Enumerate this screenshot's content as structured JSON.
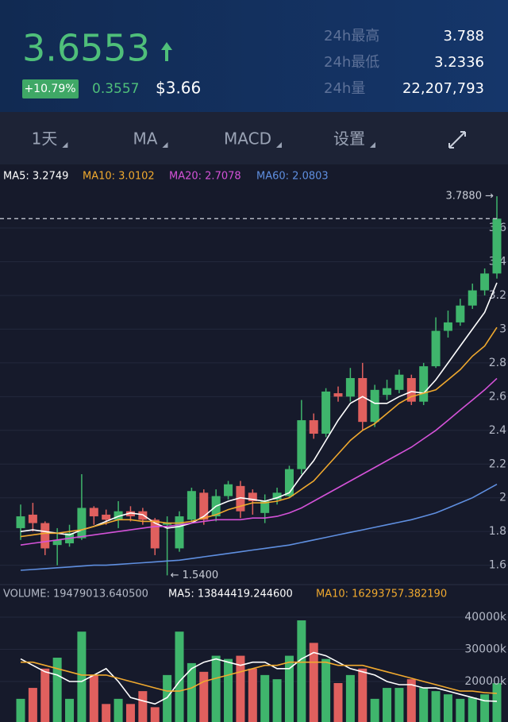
{
  "header": {
    "price": "3.6553",
    "change_pct": "+10.79%",
    "change": "0.3557",
    "usd": "$3.66",
    "stats": [
      {
        "label": "24h最高",
        "value": "3.788"
      },
      {
        "label": "24h最低",
        "value": "3.2336"
      },
      {
        "label": "24h量",
        "value": "22,207,793"
      }
    ]
  },
  "toolbar": [
    "1天",
    "MA",
    "MACD",
    "设置"
  ],
  "chart_data": [
    {
      "type": "candlestick",
      "up_color": "#3fb56c",
      "down_color": "#e0605e",
      "open": [
        1.82,
        1.9,
        1.85,
        1.72,
        1.73,
        1.76,
        1.94,
        1.9,
        1.87,
        1.92,
        1.92,
        1.87,
        1.84,
        1.7,
        1.87,
        2.03,
        1.89,
        2.01,
        2.07,
        2.03,
        1.91,
        1.99,
        2.01,
        2.17,
        2.46,
        2.38,
        2.62,
        2.6,
        2.71,
        2.45,
        2.61,
        2.64,
        2.71,
        2.57,
        2.78,
        2.99,
        3.04,
        3.14,
        3.23,
        3.33
      ],
      "high": [
        1.96,
        1.97,
        1.86,
        1.82,
        1.84,
        2.14,
        1.95,
        1.93,
        1.98,
        1.95,
        1.94,
        1.88,
        1.89,
        1.92,
        2.06,
        2.05,
        2.05,
        2.1,
        2.1,
        2.05,
        2.02,
        2.06,
        2.19,
        2.58,
        2.5,
        2.65,
        2.66,
        2.77,
        2.8,
        2.67,
        2.7,
        2.76,
        2.73,
        2.8,
        3.07,
        3.11,
        3.18,
        3.27,
        3.36,
        3.788
      ],
      "low": [
        1.75,
        1.8,
        1.66,
        1.6,
        1.71,
        1.75,
        1.84,
        1.84,
        1.82,
        1.86,
        1.84,
        1.66,
        1.54,
        1.68,
        1.85,
        1.84,
        1.86,
        1.99,
        1.88,
        1.9,
        1.85,
        1.96,
        2.0,
        2.14,
        2.35,
        2.36,
        2.57,
        2.57,
        2.4,
        2.42,
        2.58,
        2.62,
        2.55,
        2.55,
        2.77,
        2.95,
        3.02,
        3.12,
        3.2,
        3.3
      ],
      "close": [
        1.89,
        1.85,
        1.7,
        1.75,
        1.79,
        1.94,
        1.89,
        1.87,
        1.92,
        1.89,
        1.87,
        1.7,
        1.85,
        1.89,
        2.04,
        1.87,
        2.01,
        2.08,
        1.92,
        1.98,
        1.98,
        2.03,
        2.17,
        2.46,
        2.38,
        2.63,
        2.6,
        2.71,
        2.45,
        2.64,
        2.65,
        2.73,
        2.57,
        2.78,
        2.99,
        3.04,
        3.14,
        3.23,
        3.33,
        3.6553
      ],
      "series": [
        {
          "name": "MA5: 3.2749",
          "color": "#ffffff",
          "values": [
            1.8,
            1.81,
            1.8,
            1.79,
            1.78,
            1.81,
            1.83,
            1.86,
            1.89,
            1.91,
            1.9,
            1.85,
            1.82,
            1.83,
            1.85,
            1.89,
            1.95,
            1.98,
            2.0,
            1.99,
            1.98,
            2.0,
            2.03,
            2.13,
            2.22,
            2.34,
            2.46,
            2.56,
            2.6,
            2.56,
            2.56,
            2.6,
            2.63,
            2.62,
            2.7,
            2.8,
            2.9,
            3.0,
            3.1,
            3.2749
          ]
        },
        {
          "name": "MA10: 3.0102",
          "color": "#f0a92e",
          "values": [
            1.77,
            1.78,
            1.79,
            1.79,
            1.8,
            1.81,
            1.83,
            1.85,
            1.87,
            1.87,
            1.86,
            1.86,
            1.85,
            1.85,
            1.86,
            1.88,
            1.9,
            1.93,
            1.95,
            1.97,
            1.97,
            1.98,
            2.0,
            2.05,
            2.1,
            2.18,
            2.26,
            2.34,
            2.4,
            2.44,
            2.5,
            2.56,
            2.6,
            2.62,
            2.64,
            2.7,
            2.76,
            2.84,
            2.9,
            3.0102
          ]
        },
        {
          "name": "MA20: 2.7078",
          "color": "#d452d8",
          "values": [
            1.72,
            1.73,
            1.74,
            1.75,
            1.76,
            1.77,
            1.78,
            1.79,
            1.8,
            1.81,
            1.82,
            1.83,
            1.83,
            1.84,
            1.85,
            1.86,
            1.87,
            1.87,
            1.87,
            1.88,
            1.88,
            1.89,
            1.91,
            1.94,
            1.98,
            2.02,
            2.06,
            2.1,
            2.14,
            2.18,
            2.22,
            2.26,
            2.3,
            2.35,
            2.4,
            2.46,
            2.52,
            2.58,
            2.64,
            2.7078
          ]
        },
        {
          "name": "MA60: 2.0803",
          "color": "#5f8fe0",
          "values": [
            1.57,
            1.575,
            1.58,
            1.585,
            1.59,
            1.595,
            1.6,
            1.6,
            1.605,
            1.61,
            1.615,
            1.62,
            1.625,
            1.63,
            1.64,
            1.65,
            1.66,
            1.67,
            1.68,
            1.69,
            1.7,
            1.71,
            1.72,
            1.735,
            1.75,
            1.765,
            1.78,
            1.795,
            1.81,
            1.825,
            1.84,
            1.855,
            1.87,
            1.89,
            1.91,
            1.94,
            1.97,
            2.0,
            2.04,
            2.0803
          ]
        }
      ],
      "ylim": [
        1.49,
        3.845
      ],
      "yticks": [
        1.6,
        1.8,
        2,
        2.2,
        2.4,
        2.6,
        2.8,
        3,
        3.2,
        3.4,
        3.6
      ],
      "grid": true,
      "high_label": "3.7880 →",
      "low_label": "← 1.5400"
    },
    {
      "type": "bar",
      "name": "VOLUME: 19479013.640500",
      "values": [
        14600000,
        18000000,
        24000000,
        27400000,
        14600000,
        35500000,
        22000000,
        13000000,
        14600000,
        13000000,
        17000000,
        12000000,
        22000000,
        35500000,
        25700000,
        23000000,
        28000000,
        27000000,
        28000000,
        24000000,
        22000000,
        20700000,
        28000000,
        39000000,
        32000000,
        27000000,
        19500000,
        22000000,
        24000000,
        14600000,
        18000000,
        18000000,
        20700000,
        18000000,
        17000000,
        16000000,
        14600000,
        15000000,
        16000000,
        19479013.6405
      ],
      "series": [
        {
          "name": "MA5: 13844419.244600",
          "color": "#ffffff",
          "values": [
            27000000,
            25000000,
            23000000,
            22000000,
            20000000,
            20000000,
            22000000,
            24000000,
            20000000,
            15000000,
            14000000,
            13000000,
            15000000,
            20000000,
            24000000,
            26000000,
            27000000,
            26000000,
            25000000,
            26000000,
            26000000,
            24000000,
            24000000,
            27000000,
            29000000,
            28000000,
            26000000,
            24000000,
            23000000,
            22000000,
            20000000,
            19000000,
            19000000,
            18000000,
            18000000,
            17000000,
            16000000,
            15000000,
            14000000,
            13844419.2446
          ]
        },
        {
          "name": "MA10: 16293757.382190",
          "color": "#f0a92e",
          "values": [
            26000000,
            26000000,
            25000000,
            24000000,
            23000000,
            22000000,
            22000000,
            22000000,
            21000000,
            20000000,
            19000000,
            18000000,
            17000000,
            17000000,
            18000000,
            20000000,
            21000000,
            22000000,
            23000000,
            24000000,
            25000000,
            25000000,
            26000000,
            26000000,
            26000000,
            26000000,
            25000000,
            25000000,
            25000000,
            24000000,
            23000000,
            22000000,
            21000000,
            20000000,
            19000000,
            18000000,
            17000000,
            17000000,
            16500000,
            16293757.38219
          ]
        }
      ],
      "ylim": [
        7400000,
        43700000
      ],
      "yticks": [
        {
          "value": 20000000,
          "label": "20000k"
        },
        {
          "value": 30000000,
          "label": "30000k"
        },
        {
          "value": 40000000,
          "label": "40000k"
        }
      ],
      "grid": true
    }
  ]
}
